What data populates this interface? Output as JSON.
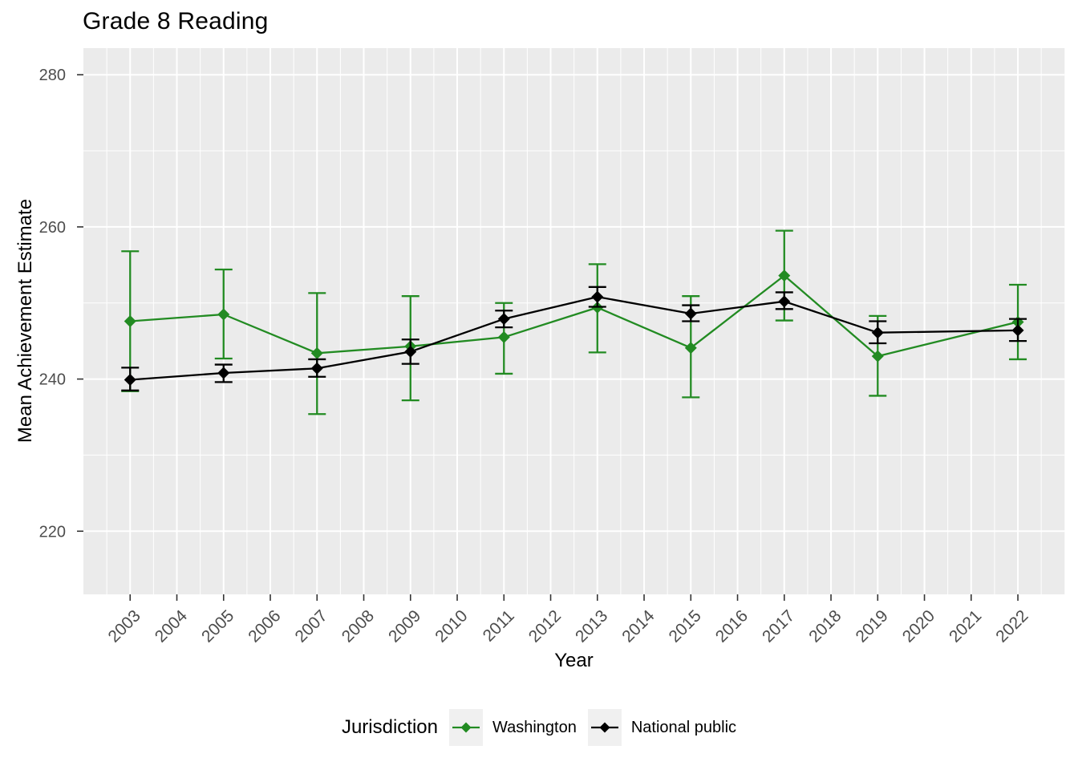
{
  "chart_data": {
    "type": "line",
    "title": "Grade 8 Reading",
    "xlabel": "Year",
    "ylabel": "Mean Achievement Estimate",
    "legend_title": "Jurisdiction",
    "legend_position": "bottom",
    "grid": true,
    "panel_background": "#EBEBEB",
    "gridline_color": "#FFFFFF",
    "axis_text_color": "#4D4D4D",
    "tick_mark_color": "#333333",
    "legend_key_fill": "#F0F0F0",
    "x_ticks": [
      2003,
      2004,
      2005,
      2006,
      2007,
      2008,
      2009,
      2010,
      2011,
      2012,
      2013,
      2014,
      2015,
      2016,
      2017,
      2018,
      2019,
      2020,
      2021,
      2022
    ],
    "y_ticks": [
      220,
      240,
      260,
      280
    ],
    "xlim": [
      2002,
      2023
    ],
    "ylim": [
      211.7,
      283.5
    ],
    "x": [
      2003,
      2005,
      2007,
      2009,
      2011,
      2013,
      2015,
      2017,
      2019,
      2022
    ],
    "series": [
      {
        "name": "Washington",
        "color": "#228B22",
        "marker": "diamond",
        "values": [
          247.6,
          248.5,
          243.4,
          244.3,
          245.5,
          249.4,
          244.1,
          253.6,
          243.0,
          247.5
        ],
        "ci_low": [
          238.4,
          242.7,
          235.4,
          237.2,
          240.7,
          243.5,
          237.6,
          247.7,
          237.8,
          242.6
        ],
        "ci_high": [
          256.8,
          254.4,
          251.3,
          250.9,
          250.0,
          255.1,
          250.9,
          259.5,
          248.3,
          252.4
        ]
      },
      {
        "name": "National public",
        "color": "#000000",
        "marker": "diamond",
        "values": [
          239.9,
          240.8,
          241.4,
          243.6,
          247.9,
          250.8,
          248.6,
          250.2,
          246.1,
          246.4
        ],
        "ci_low": [
          238.5,
          239.6,
          240.3,
          242.0,
          246.8,
          249.5,
          247.6,
          249.2,
          244.7,
          245.0
        ],
        "ci_high": [
          241.5,
          241.9,
          242.6,
          245.2,
          249.0,
          252.1,
          249.7,
          251.4,
          247.6,
          247.9
        ]
      }
    ]
  }
}
